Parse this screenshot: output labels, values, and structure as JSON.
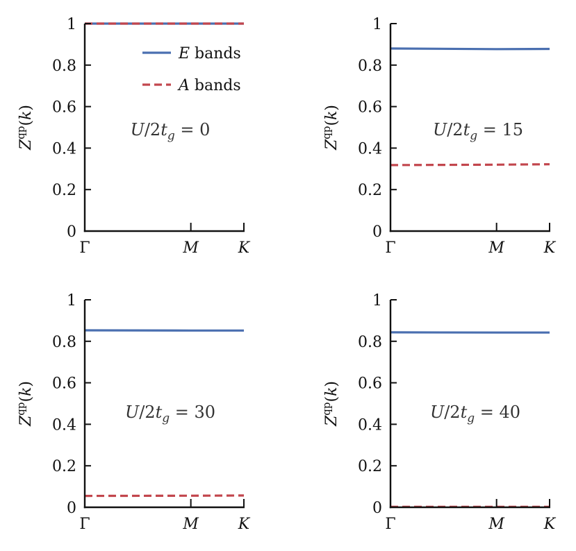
{
  "colors": {
    "E": "#4a6fb0",
    "A": "#c2464d",
    "axis": "#111111"
  },
  "legend": [
    {
      "key": "E",
      "label": "E bands",
      "style": "solid"
    },
    {
      "key": "A",
      "label": "A bands",
      "style": "dashed"
    }
  ],
  "chart_data": [
    {
      "type": "line",
      "annotation": "U/2t_g = 0",
      "ylabel": "Z^qp(k)",
      "xticks": [
        "Γ",
        "M",
        "K"
      ],
      "yticks": [
        "0",
        "0.2",
        "0.4",
        "0.6",
        "0.8",
        "1"
      ],
      "ylim": [
        0,
        1
      ],
      "legend": "top-right",
      "series": [
        {
          "name": "E bands",
          "x": [
            "Γ",
            "M",
            "K"
          ],
          "values": [
            1.0,
            1.0,
            1.0
          ]
        },
        {
          "name": "A bands",
          "x": [
            "Γ",
            "M",
            "K"
          ],
          "values": [
            1.0,
            1.0,
            1.0
          ]
        }
      ]
    },
    {
      "type": "line",
      "annotation": "U/2t_g = 15",
      "ylabel": "Z^qp(k)",
      "xticks": [
        "Γ",
        "M",
        "K"
      ],
      "yticks": [
        "0",
        "0.2",
        "0.4",
        "0.6",
        "0.8",
        "1"
      ],
      "ylim": [
        0,
        1
      ],
      "series": [
        {
          "name": "E bands",
          "x": [
            "Γ",
            "M",
            "K"
          ],
          "values": [
            0.88,
            0.877,
            0.878
          ]
        },
        {
          "name": "A bands",
          "x": [
            "Γ",
            "M",
            "K"
          ],
          "values": [
            0.318,
            0.32,
            0.322
          ]
        }
      ]
    },
    {
      "type": "line",
      "annotation": "U/2t_g = 30",
      "ylabel": "Z^qp(k)",
      "xticks": [
        "Γ",
        "M",
        "K"
      ],
      "yticks": [
        "0",
        "0.2",
        "0.4",
        "0.6",
        "0.8",
        "1"
      ],
      "ylim": [
        0,
        1
      ],
      "series": [
        {
          "name": "E bands",
          "x": [
            "Γ",
            "M",
            "K"
          ],
          "values": [
            0.853,
            0.852,
            0.852
          ]
        },
        {
          "name": "A bands",
          "x": [
            "Γ",
            "M",
            "K"
          ],
          "values": [
            0.055,
            0.056,
            0.057
          ]
        }
      ]
    },
    {
      "type": "line",
      "annotation": "U/2t_g = 40",
      "ylabel": "Z^qp(k)",
      "xticks": [
        "Γ",
        "M",
        "K"
      ],
      "yticks": [
        "0",
        "0.2",
        "0.4",
        "0.6",
        "0.8",
        "1"
      ],
      "ylim": [
        0,
        1
      ],
      "series": [
        {
          "name": "E bands",
          "x": [
            "Γ",
            "M",
            "K"
          ],
          "values": [
            0.843,
            0.842,
            0.842
          ]
        },
        {
          "name": "A bands",
          "x": [
            "Γ",
            "M",
            "K"
          ],
          "values": [
            0.002,
            0.002,
            0.002
          ]
        }
      ]
    }
  ]
}
